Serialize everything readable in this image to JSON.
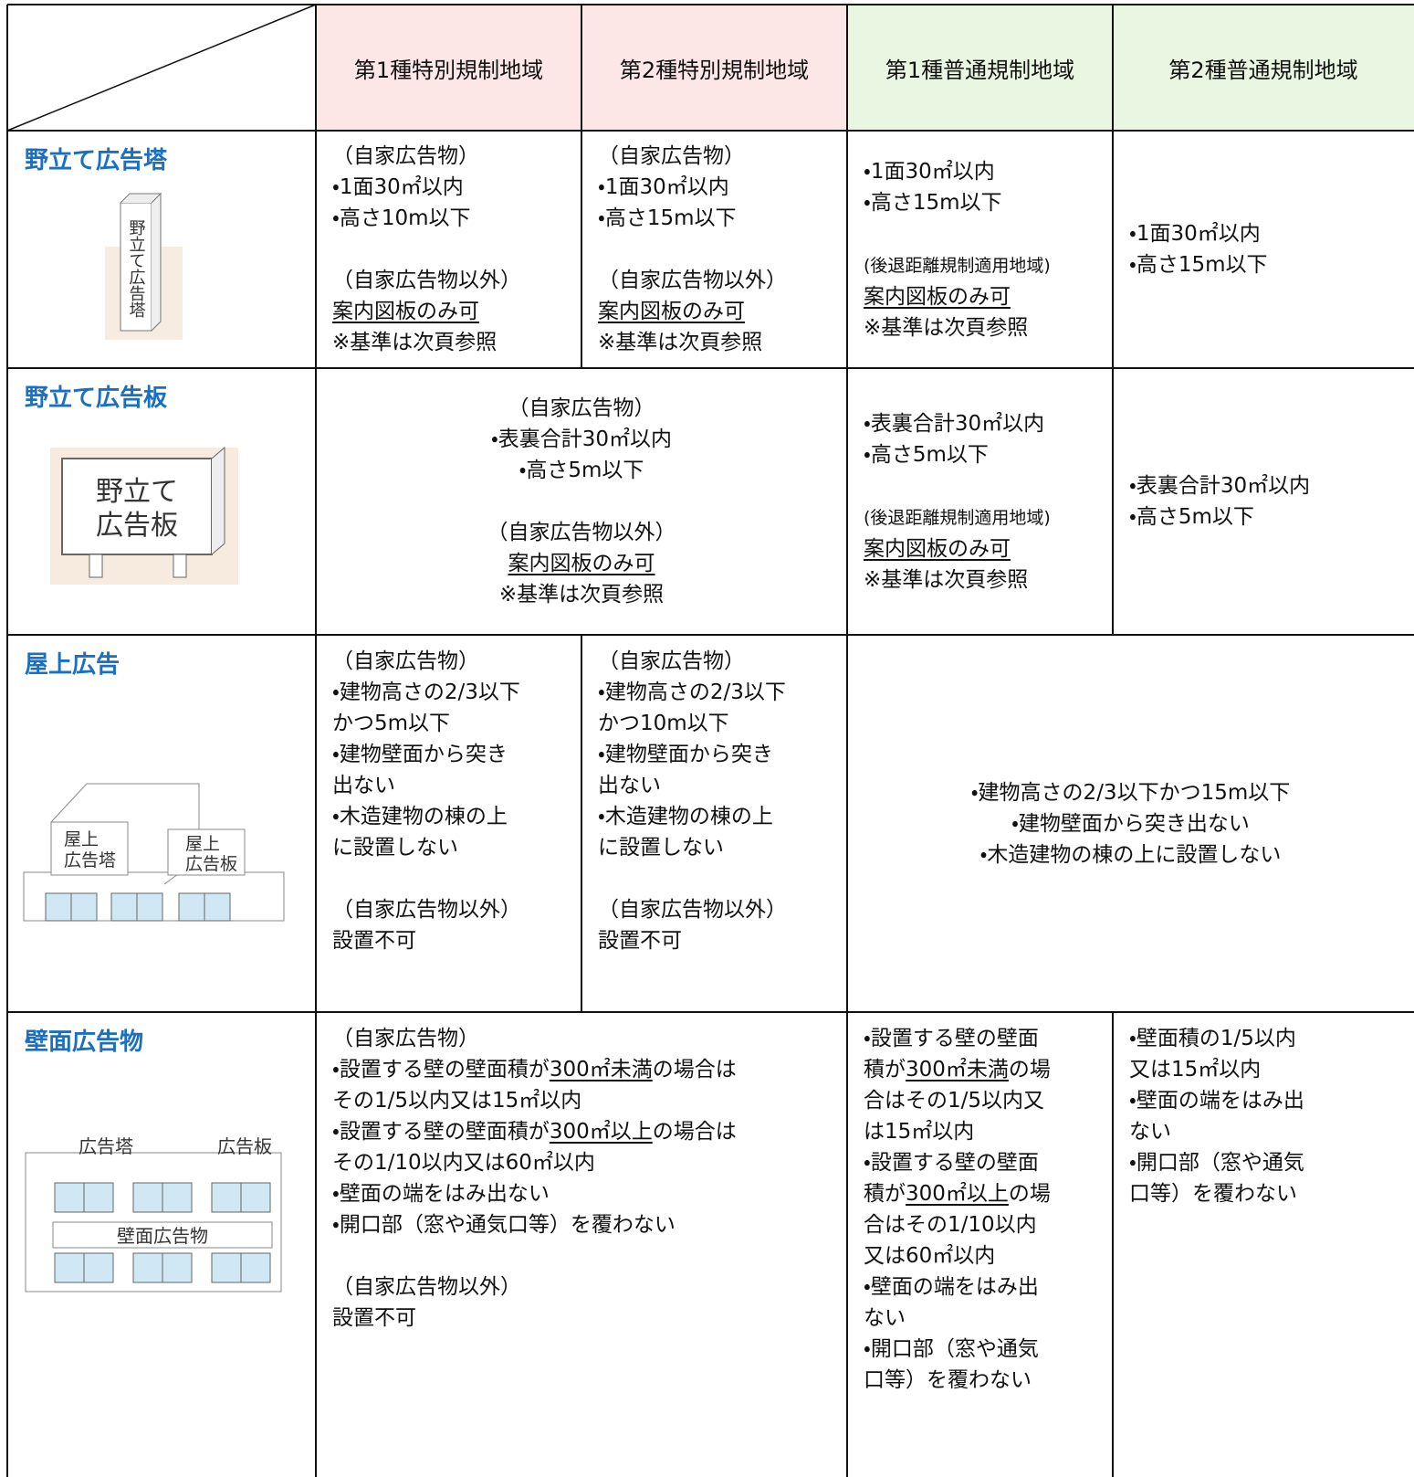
{
  "header": {
    "columns": [
      "第1種特別規制地域",
      "第2種特別規制地域",
      "第1種普通規制地域",
      "第2種普通規制地域"
    ]
  },
  "rows": [
    {
      "label": "野立て広告塔",
      "illustration": [
        "野立て広告塔"
      ],
      "cells": [
        {
          "blocks": [
            [
              "（自家広告物）",
              "・1面30㎡以内",
              "・高さ10m以下"
            ],
            [
              "（自家広告物以外）",
              [
                {
                  "text": "案内図板のみ可",
                  "underline": true
                }
              ],
              "※基準は次頁参照"
            ]
          ]
        },
        {
          "blocks": [
            [
              "（自家広告物）",
              "・1面30㎡以内",
              "・高さ15m以下"
            ],
            [
              "（自家広告物以外）",
              [
                {
                  "text": "案内図板のみ可",
                  "underline": true
                }
              ],
              "※基準は次頁参照"
            ]
          ]
        },
        {
          "blocks": [
            [
              "・1面30㎡以内",
              "・高さ15m以下"
            ],
            [
              [
                {
                  "text": "(後退距離規制適用地域)",
                  "small": true
                }
              ],
              [
                {
                  "text": "案内図板のみ可",
                  "underline": true
                }
              ],
              "※基準は次頁参照"
            ]
          ]
        },
        {
          "blocks": [
            [
              "・1面30㎡以内",
              "・高さ15m以下"
            ]
          ]
        }
      ]
    },
    {
      "label": "野立て広告板",
      "illustration": [
        "野立て",
        "広告板"
      ],
      "cells": [
        {
          "blocks": [
            [
              "（自家広告物）",
              "・表裏合計30㎡以内",
              "・高さ5m以下"
            ],
            [
              "（自家広告物以外）",
              [
                {
                  "text": "案内図板のみ可",
                  "underline": true
                }
              ],
              "※基準は次頁参照"
            ]
          ]
        },
        {
          "blocks": [
            [
              "・表裏合計30㎡以内",
              "・高さ5m以下"
            ],
            [
              [
                {
                  "text": "(後退距離規制適用地域)",
                  "small": true
                }
              ],
              [
                {
                  "text": "案内図板のみ可",
                  "underline": true
                }
              ],
              "※基準は次頁参照"
            ]
          ]
        },
        {
          "blocks": [
            [
              "・表裏合計30㎡以内",
              "・高さ5m以下"
            ]
          ]
        }
      ]
    },
    {
      "label": "屋上広告",
      "illustration": [
        "屋上",
        "広告塔",
        "屋上",
        "広告板"
      ],
      "cells": [
        {
          "blocks": [
            [
              "（自家広告物）",
              "・建物高さの2/3以下",
              "かつ5m以下",
              "・建物壁面から突き",
              "出ない",
              "・木造建物の棟の上",
              "に設置しない"
            ],
            [
              "（自家広告物以外）",
              "設置不可"
            ]
          ]
        },
        {
          "blocks": [
            [
              "（自家広告物）",
              "・建物高さの2/3以下",
              "かつ10m以下",
              "・建物壁面から突き",
              "出ない",
              "・木造建物の棟の上",
              "に設置しない"
            ],
            [
              "（自家広告物以外）",
              "設置不可"
            ]
          ]
        },
        {
          "blocks": [
            [
              "・建物高さの2/3以下かつ15m以下",
              "・建物壁面から突き出ない",
              "・木造建物の棟の上に設置しない"
            ]
          ]
        }
      ]
    },
    {
      "label": "壁面広告物",
      "illustration": [
        "広告塔",
        "広告板",
        "壁面広告物"
      ],
      "cells": [
        {
          "blocks": [
            [
              "（自家広告物）",
              [
                "・設置する壁の壁面積が",
                {
                  "text": "300㎡未満",
                  "underline": true
                },
                "の場合は"
              ],
              "その1/5以内又は15㎡以内",
              [
                "・設置する壁の壁面積が",
                {
                  "text": "300㎡以上",
                  "underline": true
                },
                "の場合は"
              ],
              "その1/10以内又は60㎡以内",
              "・壁面の端をはみ出ない",
              "・開口部（窓や通気口等）を覆わない"
            ],
            [
              "（自家広告物以外）",
              "設置不可"
            ]
          ]
        },
        {
          "blocks": [
            [
              "・設置する壁の壁面",
              [
                "積が",
                {
                  "text": "300㎡未満",
                  "underline": true
                },
                "の場"
              ],
              "合はその1/5以内又",
              "は15㎡以内",
              "・設置する壁の壁面",
              [
                "積が",
                {
                  "text": "300㎡以上",
                  "underline": true
                },
                "の場"
              ],
              "合はその1/10以内",
              "又は60㎡以内",
              "・壁面の端をはみ出",
              "ない",
              "・開口部（窓や通気",
              "口等）を覆わない"
            ]
          ]
        },
        {
          "blocks": [
            [
              "・壁面積の1/5以内",
              "又は15㎡以内",
              "・壁面の端をはみ出",
              "ない",
              "・開口部（窓や通気",
              "口等）を覆わない"
            ]
          ]
        }
      ]
    }
  ]
}
